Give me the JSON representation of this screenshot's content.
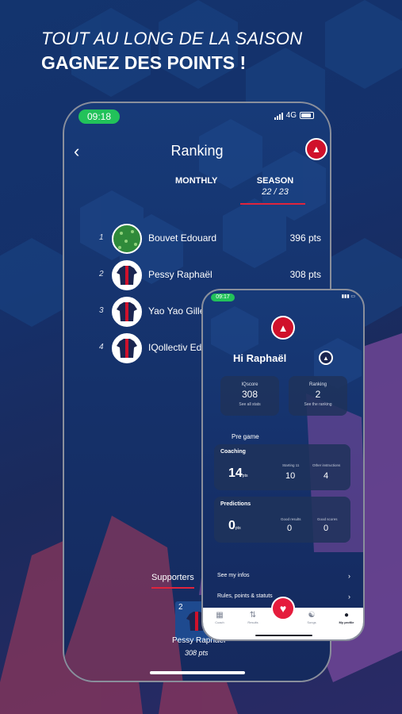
{
  "headline": {
    "line1": "TOUT AU LONG DE LA SAISON",
    "line2": "GAGNEZ DES POINTS !"
  },
  "ranking_screen": {
    "status": {
      "time": "09:18",
      "network": "4G"
    },
    "title": "Ranking",
    "tabs": {
      "monthly": "MONTHLY",
      "season": "SEASON",
      "season_sub": "22 / 23"
    },
    "rows": [
      {
        "rank": "1",
        "name": "Bouvet Edouard",
        "points": "396 pts"
      },
      {
        "rank": "2",
        "name": "Pessy Raphaël",
        "points": "308 pts"
      },
      {
        "rank": "3",
        "name": "Yao Yao Gille",
        "points": ""
      },
      {
        "rank": "4",
        "name": "IQollectiv Ed",
        "points": ""
      }
    ],
    "supporters_tab": "Supporters",
    "supporter_card": {
      "rank": "2",
      "name": "Pessy Raphaël",
      "points": "308 pts"
    }
  },
  "profile_screen": {
    "status": {
      "time": "09:17"
    },
    "greeting": "Hi Raphaël",
    "iqscore": {
      "title": "IQscore",
      "value": "308",
      "link": "See all stats"
    },
    "ranking": {
      "title": "Ranking",
      "value": "2",
      "link": "See the ranking"
    },
    "section": "Pre game",
    "coaching": {
      "title": "Coaching",
      "points": "14",
      "unit": "pts",
      "starting_label": "Starting 11",
      "starting_value": "10",
      "other_label": "Other instructions",
      "other_value": "4"
    },
    "predictions": {
      "title": "Predictions",
      "points": "0",
      "unit": "pts",
      "results_label": "Good results",
      "results_value": "0",
      "scores_label": "Good scores",
      "scores_value": "0"
    },
    "links": {
      "infos": "See my infos",
      "rules": "Rules, points & statuts"
    },
    "tabbar": {
      "t1": "Coach",
      "t2": "Results",
      "t3": "Songs",
      "t4": "My profile"
    }
  },
  "colors": {
    "accent": "#e0243c",
    "live_green": "#22c25a",
    "bg_navy": "#15316a"
  }
}
